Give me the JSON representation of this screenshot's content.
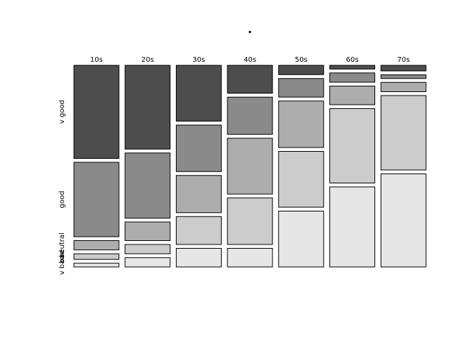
{
  "chart_data": {
    "type": "mosaic",
    "title": ".",
    "categories": [
      "10s",
      "20s",
      "30s",
      "40s",
      "50s",
      "60s",
      "70s"
    ],
    "series": [
      {
        "name": "v good",
        "color": "#4d4d4d",
        "values": [
          50,
          45,
          30,
          15,
          5,
          2,
          3
        ]
      },
      {
        "name": "good",
        "color": "#8a8a8a",
        "values": [
          40,
          35,
          25,
          20,
          10,
          5,
          2
        ]
      },
      {
        "name": "neutral",
        "color": "#adadad",
        "values": [
          5,
          10,
          20,
          30,
          25,
          10,
          5
        ]
      },
      {
        "name": "bad",
        "color": "#cccccc",
        "values": [
          3,
          5,
          15,
          25,
          30,
          40,
          40
        ]
      },
      {
        "name": "v bad",
        "color": "#e6e6e6",
        "values": [
          2,
          5,
          10,
          10,
          30,
          43,
          50
        ]
      }
    ]
  }
}
